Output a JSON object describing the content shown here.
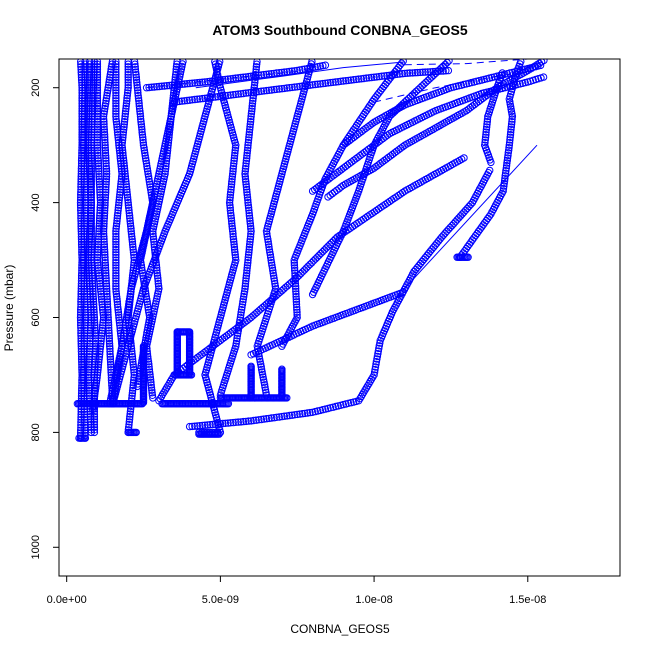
{
  "chart_data": {
    "type": "scatter",
    "title": "ATOM3 Southbound CONBNA_GEOS5",
    "xlabel": "CONBNA_GEOS5",
    "ylabel": "Pressure (mbar)",
    "xlim": [
      -2.5e-10,
      1.8e-08
    ],
    "ylim": [
      1050,
      150
    ],
    "y_reversed": true,
    "grid": false,
    "legend": "none",
    "marker": "open-circle",
    "color": "#0000ff",
    "x_ticks": [
      {
        "value": 0,
        "label": "0.0e+00"
      },
      {
        "value": 5e-09,
        "label": "5.0e-09"
      },
      {
        "value": 1e-08,
        "label": "1.0e-08"
      },
      {
        "value": 1.5e-08,
        "label": "1.5e-08"
      }
    ],
    "y_ticks": [
      {
        "value": 200,
        "label": "200"
      },
      {
        "value": 400,
        "label": "400"
      },
      {
        "value": 600,
        "label": "600"
      },
      {
        "value": 800,
        "label": "800"
      },
      {
        "value": 1000,
        "label": "1000"
      }
    ],
    "series": [
      {
        "kind": "profile",
        "points": [
          [
            4.5e-10,
            810
          ],
          [
            5e-10,
            700
          ],
          [
            4.5e-10,
            600
          ],
          [
            5e-10,
            500
          ],
          [
            4.5e-10,
            400
          ],
          [
            5e-10,
            300
          ],
          [
            5e-10,
            200
          ],
          [
            4.5e-10,
            150
          ]
        ]
      },
      {
        "kind": "profile",
        "points": [
          [
            6e-10,
            810
          ],
          [
            5.5e-10,
            700
          ],
          [
            6e-10,
            600
          ],
          [
            5.5e-10,
            500
          ],
          [
            6e-10,
            400
          ],
          [
            5.5e-10,
            300
          ],
          [
            6e-10,
            200
          ],
          [
            6e-10,
            150
          ]
        ]
      },
      {
        "kind": "profile",
        "points": [
          [
            8e-10,
            800
          ],
          [
            7e-10,
            700
          ],
          [
            8e-10,
            600
          ],
          [
            7e-10,
            500
          ],
          [
            8e-10,
            400
          ],
          [
            7e-10,
            300
          ],
          [
            7.5e-10,
            150
          ]
        ]
      },
      {
        "kind": "profile",
        "points": [
          [
            9e-10,
            800
          ],
          [
            9e-10,
            700
          ],
          [
            9.5e-10,
            650
          ],
          [
            9e-10,
            600
          ],
          [
            8e-10,
            500
          ],
          [
            8e-10,
            400
          ],
          [
            8e-10,
            300
          ],
          [
            9e-10,
            150
          ]
        ]
      },
      {
        "kind": "profile",
        "points": [
          [
            8.5e-10,
            760
          ],
          [
            1e-09,
            700
          ],
          [
            1.2e-09,
            600
          ],
          [
            1e-09,
            500
          ],
          [
            1.1e-09,
            400
          ],
          [
            1e-09,
            300
          ],
          [
            1e-09,
            150
          ]
        ]
      },
      {
        "kind": "profile",
        "points": [
          [
            1.5e-09,
            750
          ],
          [
            1.4e-09,
            650
          ],
          [
            1.3e-09,
            550
          ],
          [
            1.2e-09,
            450
          ],
          [
            1.3e-09,
            350
          ],
          [
            1.2e-09,
            250
          ],
          [
            1.5e-09,
            150
          ]
        ]
      },
      {
        "kind": "profile",
        "points": [
          [
            1.5e-09,
            750
          ],
          [
            1.8e-09,
            650
          ],
          [
            1.6e-09,
            550
          ],
          [
            1.6e-09,
            450
          ],
          [
            1.8e-09,
            350
          ],
          [
            1.6e-09,
            250
          ],
          [
            1.6e-09,
            150
          ]
        ]
      },
      {
        "kind": "profile",
        "points": [
          [
            2e-09,
            800
          ],
          [
            2.2e-09,
            700
          ],
          [
            2e-09,
            600
          ],
          [
            2.2e-09,
            500
          ],
          [
            2e-09,
            400
          ],
          [
            1.8e-09,
            300
          ],
          [
            2e-09,
            200
          ],
          [
            2e-09,
            150
          ]
        ]
      },
      {
        "kind": "profile",
        "points": [
          [
            2.3e-09,
            720
          ],
          [
            2.7e-09,
            600
          ],
          [
            2.4e-09,
            500
          ],
          [
            2.8e-09,
            400
          ],
          [
            2.5e-09,
            300
          ],
          [
            2.3e-09,
            200
          ],
          [
            2.2e-09,
            150
          ]
        ]
      },
      {
        "kind": "profile",
        "points": [
          [
            2.8e-09,
            740
          ],
          [
            2.6e-09,
            650
          ],
          [
            3e-09,
            550
          ],
          [
            2.8e-09,
            450
          ],
          [
            3.2e-09,
            350
          ],
          [
            3.4e-09,
            250
          ],
          [
            3.6e-09,
            150
          ]
        ]
      },
      {
        "kind": "profile",
        "points": [
          [
            1.4e-09,
            750
          ],
          [
            1.8e-09,
            650
          ],
          [
            2.1e-09,
            550
          ],
          [
            2.6e-09,
            450
          ],
          [
            3e-09,
            350
          ],
          [
            3.4e-09,
            250
          ],
          [
            3.8e-09,
            150
          ]
        ]
      },
      {
        "kind": "profile",
        "points": [
          [
            1.5e-09,
            750
          ],
          [
            2e-09,
            650
          ],
          [
            2.5e-09,
            550
          ],
          [
            3.2e-09,
            450
          ],
          [
            4e-09,
            350
          ],
          [
            4.5e-09,
            250
          ],
          [
            5e-09,
            150
          ]
        ]
      },
      {
        "kind": "profile",
        "points": [
          [
            4.3e-09,
            800
          ],
          [
            5e-09,
            800
          ],
          [
            4.5e-09,
            700
          ],
          [
            5e-09,
            600
          ],
          [
            5.5e-09,
            500
          ],
          [
            5.3e-09,
            400
          ],
          [
            5.5e-09,
            300
          ],
          [
            5e-09,
            200
          ],
          [
            4.8e-09,
            150
          ]
        ]
      },
      {
        "kind": "profile",
        "points": [
          [
            5e-09,
            735
          ],
          [
            5.5e-09,
            650
          ],
          [
            5.8e-09,
            550
          ],
          [
            6e-09,
            450
          ],
          [
            5.8e-09,
            350
          ],
          [
            6e-09,
            250
          ],
          [
            6.2e-09,
            150
          ]
        ]
      },
      {
        "kind": "profile",
        "points": [
          [
            6.5e-09,
            735
          ],
          [
            6.2e-09,
            650
          ],
          [
            6.8e-09,
            550
          ],
          [
            6.5e-09,
            450
          ],
          [
            7e-09,
            350
          ],
          [
            7.5e-09,
            250
          ],
          [
            8e-09,
            150
          ]
        ]
      },
      {
        "kind": "profile",
        "points": [
          [
            7e-09,
            650
          ],
          [
            7.5e-09,
            600
          ],
          [
            7.4e-09,
            500
          ],
          [
            8e-09,
            420
          ],
          [
            8.4e-09,
            360
          ],
          [
            9e-09,
            300
          ],
          [
            1e-08,
            220
          ],
          [
            1.1e-08,
            150
          ]
        ]
      },
      {
        "kind": "profile",
        "points": [
          [
            8e-09,
            560
          ],
          [
            9e-09,
            450
          ],
          [
            9.5e-09,
            380
          ],
          [
            1e-08,
            300
          ],
          [
            1.05e-08,
            250
          ],
          [
            1.15e-08,
            200
          ],
          [
            1.25e-08,
            150
          ]
        ]
      },
      {
        "kind": "profile",
        "points": [
          [
            3e-09,
            745
          ],
          [
            3.5e-09,
            700
          ],
          [
            4e-09,
            680
          ],
          [
            5e-09,
            640
          ],
          [
            6e-09,
            600
          ],
          [
            7.5e-09,
            530
          ],
          [
            8.8e-09,
            460
          ],
          [
            1.1e-08,
            380
          ],
          [
            1.3e-08,
            320
          ]
        ]
      },
      {
        "kind": "profile",
        "points": [
          [
            6e-09,
            665
          ],
          [
            7e-09,
            640
          ],
          [
            8e-09,
            615
          ],
          [
            9e-09,
            595
          ],
          [
            1e-08,
            575
          ],
          [
            1.1e-08,
            555
          ]
        ]
      },
      {
        "kind": "profile",
        "points": [
          [
            4e-09,
            790
          ],
          [
            6e-09,
            780
          ],
          [
            8e-09,
            765
          ],
          [
            9.5e-09,
            745
          ],
          [
            1e-08,
            700
          ],
          [
            1.02e-08,
            640
          ],
          [
            1.06e-08,
            590
          ],
          [
            1.13e-08,
            520
          ],
          [
            1.22e-08,
            460
          ],
          [
            1.32e-08,
            400
          ],
          [
            1.38e-08,
            340
          ]
        ]
      },
      {
        "kind": "profile",
        "points": [
          [
            1.28e-08,
            495
          ],
          [
            1.3e-08,
            480
          ],
          [
            1.34e-08,
            450
          ],
          [
            1.38e-08,
            420
          ],
          [
            1.42e-08,
            380
          ],
          [
            1.44e-08,
            300
          ],
          [
            1.45e-08,
            250
          ],
          [
            1.44e-08,
            220
          ],
          [
            1.46e-08,
            180
          ],
          [
            1.48e-08,
            150
          ]
        ]
      },
      {
        "kind": "profile",
        "points": [
          [
            1.38e-08,
            330
          ],
          [
            1.36e-08,
            300
          ],
          [
            1.37e-08,
            250
          ],
          [
            1.4e-08,
            200
          ],
          [
            1.42e-08,
            170
          ]
        ]
      },
      {
        "kind": "profile",
        "points": [
          [
            2.6e-09,
            200
          ],
          [
            4.5e-09,
            190
          ],
          [
            6e-09,
            180
          ],
          [
            7.5e-09,
            170
          ],
          [
            8.5e-09,
            160
          ]
        ]
      },
      {
        "kind": "profile",
        "points": [
          [
            3.5e-09,
            225
          ],
          [
            5e-09,
            215
          ],
          [
            6.5e-09,
            205
          ],
          [
            8e-09,
            195
          ],
          [
            9.5e-09,
            185
          ],
          [
            1.1e-08,
            175
          ],
          [
            1.25e-08,
            170
          ]
        ]
      },
      {
        "kind": "profile",
        "points": [
          [
            8.5e-09,
            390
          ],
          [
            9e-09,
            370
          ],
          [
            1e-08,
            340
          ],
          [
            1.1e-08,
            300
          ],
          [
            1.2e-08,
            270
          ],
          [
            1.3e-08,
            240
          ],
          [
            1.4e-08,
            200
          ],
          [
            1.5e-08,
            170
          ],
          [
            1.56e-08,
            150
          ]
        ]
      },
      {
        "kind": "profile",
        "points": [
          [
            8e-09,
            380
          ],
          [
            9e-09,
            340
          ],
          [
            1.05e-08,
            280
          ],
          [
            1.2e-08,
            240
          ],
          [
            1.35e-08,
            210
          ],
          [
            1.5e-08,
            190
          ],
          [
            1.56e-08,
            180
          ]
        ]
      },
      {
        "kind": "profile",
        "points": [
          [
            9e-09,
            300
          ],
          [
            1e-08,
            260
          ],
          [
            1.1e-08,
            230
          ],
          [
            1.25e-08,
            200
          ],
          [
            1.4e-08,
            180
          ],
          [
            1.55e-08,
            160
          ]
        ]
      }
    ],
    "solid_lines": [
      [
        [
          1.09e-08,
          555
        ],
        [
          1.53e-08,
          300
        ]
      ],
      [
        [
          4.2e-09,
          200
        ],
        [
          7e-09,
          180
        ],
        [
          9e-09,
          165
        ],
        [
          1.1e-08,
          155
        ]
      ]
    ],
    "dashed_lines": [
      [
        [
          2.6e-09,
          200
        ],
        [
          5e-09,
          185
        ],
        [
          7.5e-09,
          172
        ]
      ],
      [
        [
          1.1e-08,
          160
        ],
        [
          1.3e-08,
          158
        ],
        [
          1.5e-08,
          150
        ]
      ],
      [
        [
          1e-08,
          225
        ],
        [
          1.2e-08,
          200
        ],
        [
          1.4e-08,
          180
        ],
        [
          1.53e-08,
          170
        ]
      ]
    ],
    "dense_segments": [
      [
        [
          3.5e-10,
          750
        ],
        [
          2.5e-09,
          750
        ]
      ],
      [
        [
          3.1e-09,
          750
        ],
        [
          5.3e-09,
          750
        ]
      ],
      [
        [
          3.5e-09,
          700
        ],
        [
          4.1e-09,
          700
        ]
      ],
      [
        [
          3.6e-09,
          625
        ],
        [
          4e-09,
          625
        ]
      ],
      [
        [
          5e-09,
          740
        ],
        [
          7.2e-09,
          740
        ]
      ],
      [
        [
          4.3e-09,
          803
        ],
        [
          5e-09,
          803
        ]
      ],
      [
        [
          1.27e-08,
          495
        ],
        [
          1.31e-08,
          495
        ]
      ],
      [
        [
          2e-09,
          800
        ],
        [
          2.3e-09,
          800
        ]
      ],
      [
        [
          4e-10,
          810
        ],
        [
          6.5e-10,
          810
        ]
      ],
      [
        [
          3.6e-09,
          625
        ],
        [
          3.6e-09,
          700
        ]
      ],
      [
        [
          4e-09,
          625
        ],
        [
          4e-09,
          700
        ]
      ],
      [
        [
          2.5e-09,
          650
        ],
        [
          2.5e-09,
          750
        ]
      ],
      [
        [
          7e-09,
          690
        ],
        [
          7e-09,
          740
        ]
      ],
      [
        [
          6e-09,
          685
        ],
        [
          6e-09,
          740
        ]
      ]
    ]
  }
}
